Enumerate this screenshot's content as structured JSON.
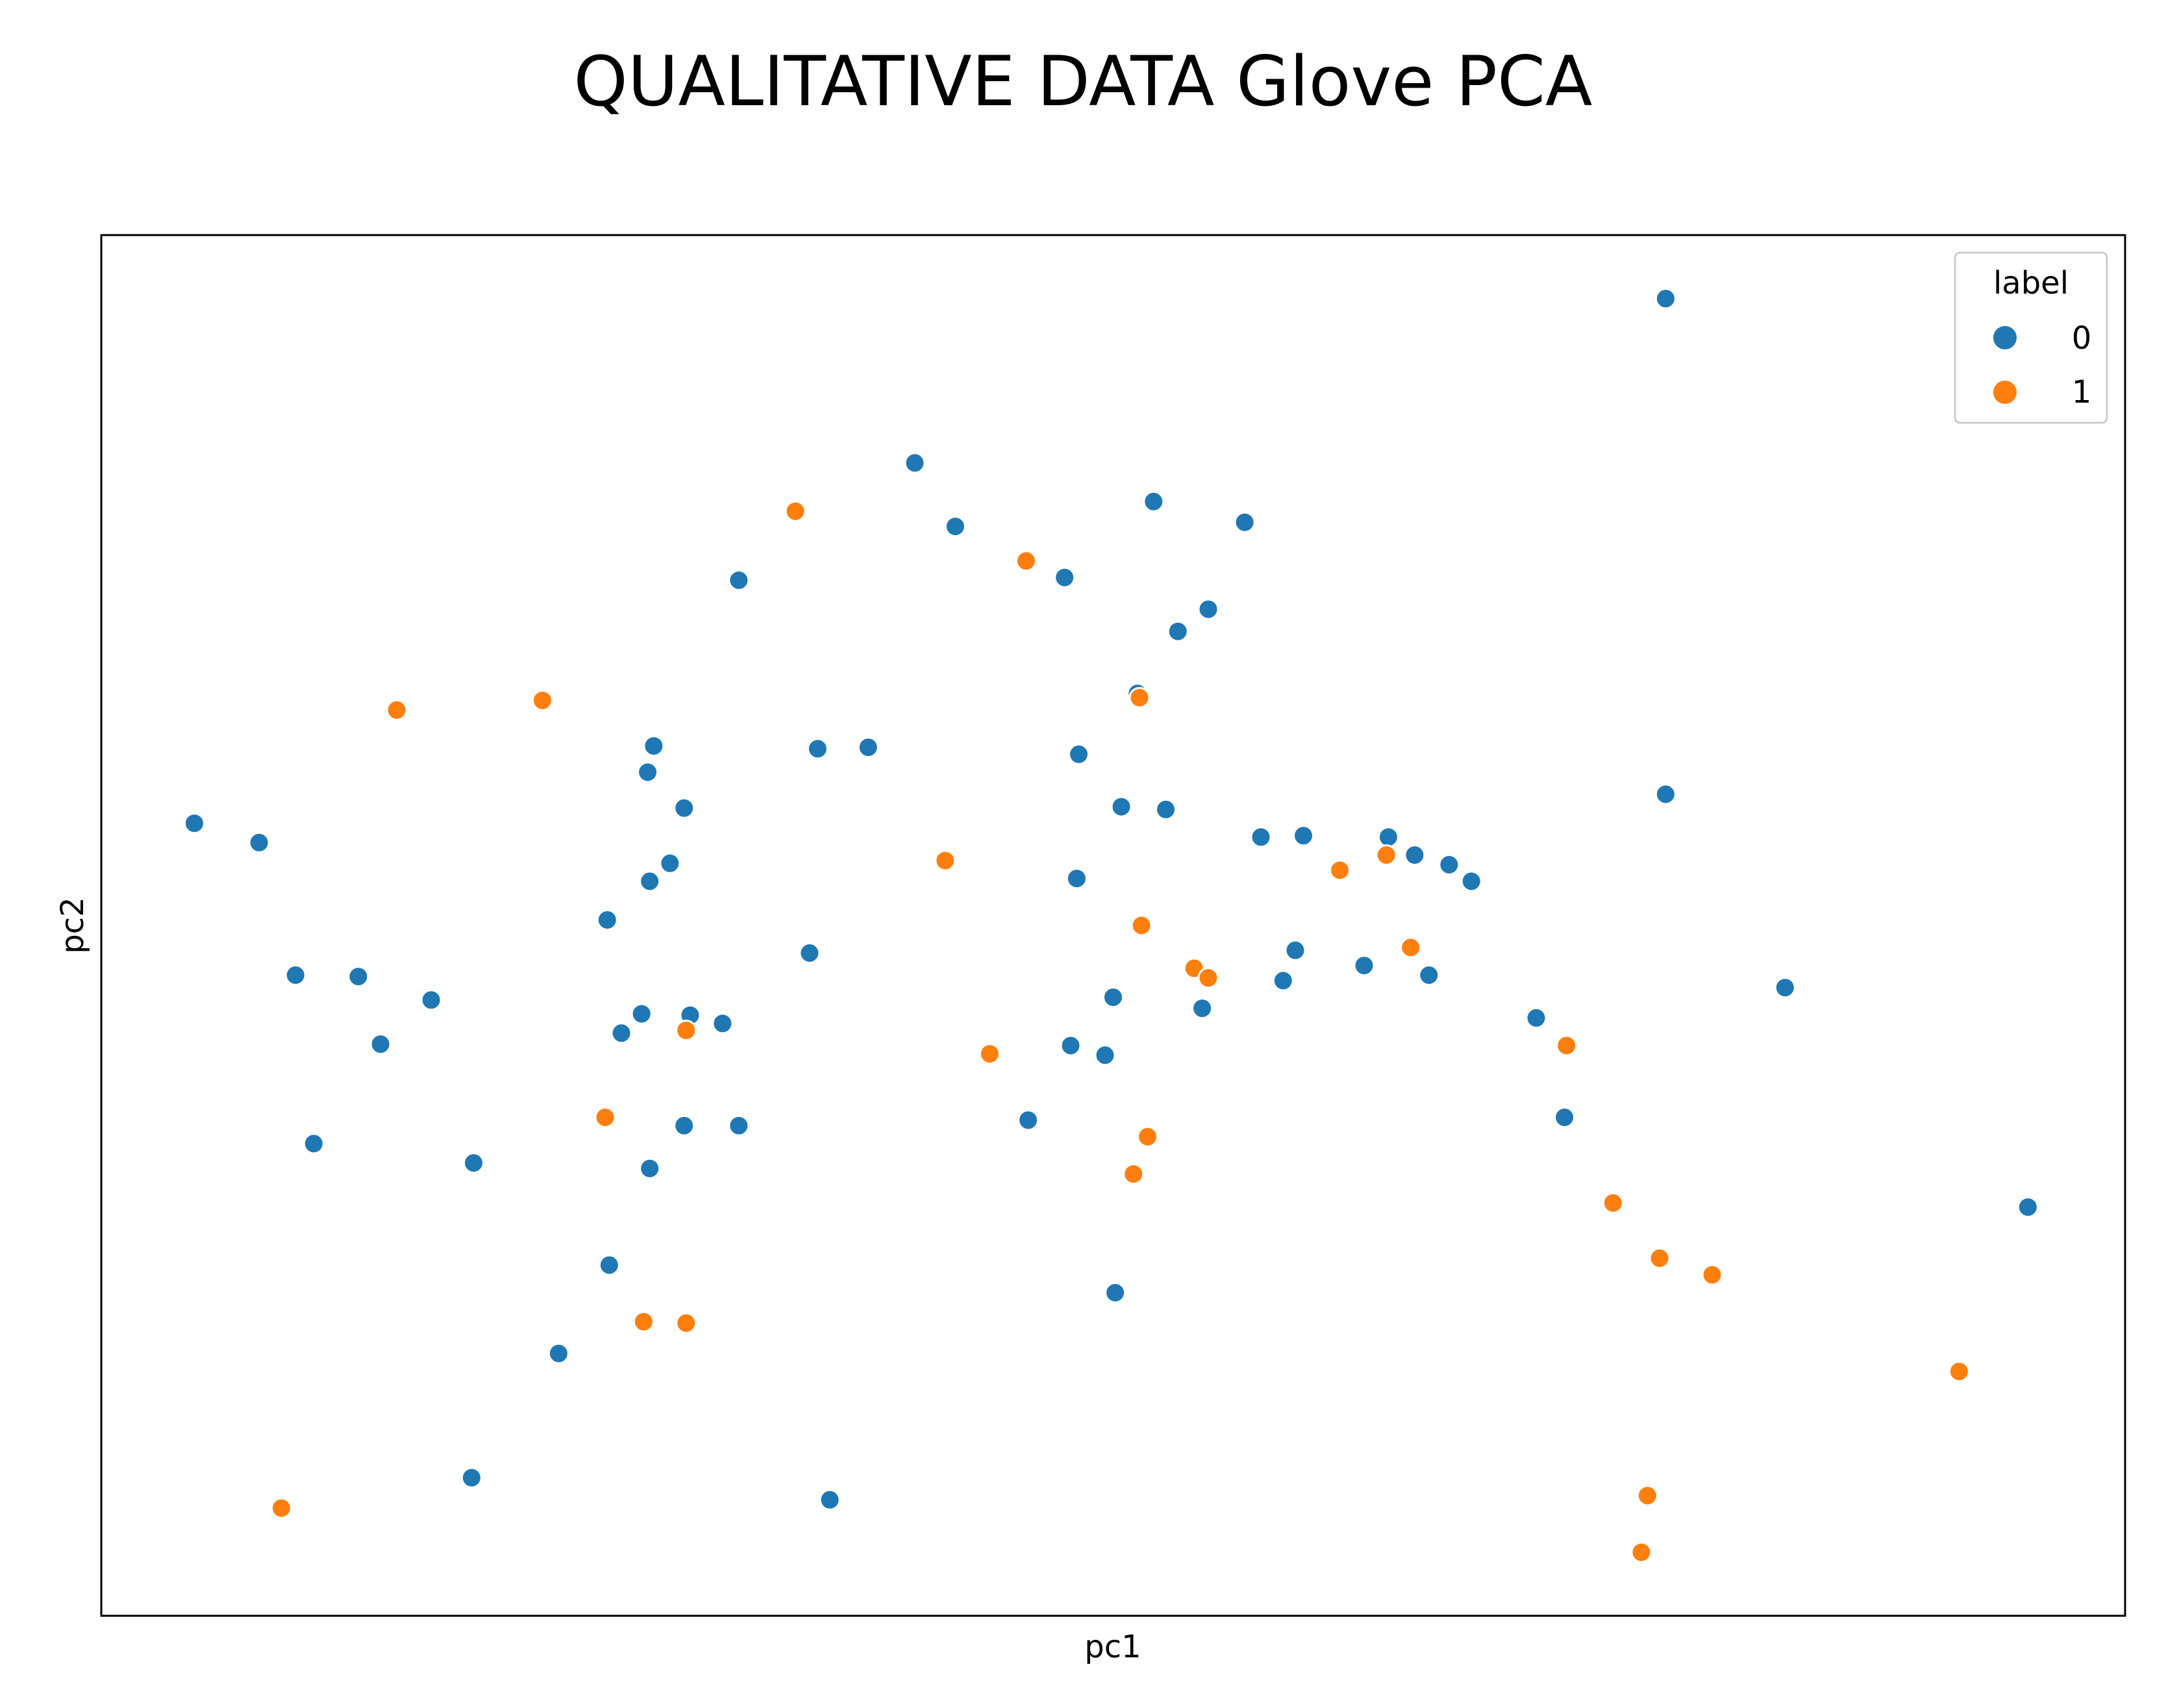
{
  "chart_data": {
    "type": "scatter",
    "title": "QUALITATIVE DATA Glove PCA",
    "xlabel": "pc1",
    "ylabel": "pc2",
    "xlim": [
      0,
      100
    ],
    "ylim": [
      0,
      100
    ],
    "ticks_visible": false,
    "grid": false,
    "legend": {
      "title": "label",
      "placement": "top-right",
      "entries": [
        {
          "label": "0",
          "color": "#1f77b4"
        },
        {
          "label": "1",
          "color": "#ff7f0e"
        }
      ]
    },
    "series": [
      {
        "name": "0",
        "color": "#1f77b4",
        "points": [
          [
            4.6,
            57.4
          ],
          [
            7.8,
            56.0
          ],
          [
            9.6,
            46.4
          ],
          [
            12.7,
            46.3
          ],
          [
            16.3,
            44.6
          ],
          [
            13.8,
            41.4
          ],
          [
            10.5,
            34.2
          ],
          [
            18.4,
            32.8
          ],
          [
            25.0,
            50.4
          ],
          [
            26.7,
            43.6
          ],
          [
            25.7,
            42.2
          ],
          [
            27.1,
            32.4
          ],
          [
            25.1,
            25.4
          ],
          [
            22.6,
            19.0
          ],
          [
            18.3,
            10.0
          ],
          [
            27.3,
            63.0
          ],
          [
            27.0,
            61.1
          ],
          [
            28.8,
            58.5
          ],
          [
            27.1,
            53.2
          ],
          [
            28.1,
            54.5
          ],
          [
            29.1,
            43.5
          ],
          [
            30.7,
            42.9
          ],
          [
            31.5,
            35.5
          ],
          [
            31.5,
            75.0
          ],
          [
            35.4,
            62.8
          ],
          [
            35.0,
            48.0
          ],
          [
            37.9,
            62.9
          ],
          [
            36.0,
            8.4
          ],
          [
            40.2,
            83.5
          ],
          [
            42.2,
            78.9
          ],
          [
            47.6,
            75.2
          ],
          [
            48.3,
            62.4
          ],
          [
            48.2,
            53.4
          ],
          [
            47.9,
            41.3
          ],
          [
            45.8,
            35.9
          ],
          [
            49.6,
            40.6
          ],
          [
            50.0,
            44.8
          ],
          [
            50.4,
            58.6
          ],
          [
            54.4,
            44.0
          ],
          [
            50.1,
            23.4
          ],
          [
            52.0,
            80.7
          ],
          [
            53.2,
            71.3
          ],
          [
            54.7,
            72.9
          ],
          [
            52.6,
            58.4
          ],
          [
            56.5,
            79.2
          ],
          [
            51.2,
            66.8
          ],
          [
            57.3,
            56.4
          ],
          [
            59.4,
            56.5
          ],
          [
            59.0,
            48.2
          ],
          [
            58.4,
            46.0
          ],
          [
            62.4,
            47.1
          ],
          [
            64.9,
            55.1
          ],
          [
            66.6,
            54.4
          ],
          [
            67.7,
            53.2
          ],
          [
            63.6,
            56.4
          ],
          [
            70.9,
            43.3
          ],
          [
            72.3,
            36.1
          ],
          [
            77.3,
            95.4
          ],
          [
            77.3,
            59.5
          ],
          [
            83.2,
            45.5
          ],
          [
            95.2,
            29.6
          ],
          [
            28.8,
            35.5
          ],
          [
            65.6,
            46.4
          ]
        ]
      },
      {
        "name": "1",
        "color": "#ff7f0e",
        "points": [
          [
            8.9,
            7.8
          ],
          [
            14.6,
            65.6
          ],
          [
            21.8,
            66.3
          ],
          [
            24.9,
            36.1
          ],
          [
            26.8,
            21.3
          ],
          [
            28.9,
            21.2
          ],
          [
            28.9,
            42.4
          ],
          [
            34.3,
            80.0
          ],
          [
            41.7,
            54.7
          ],
          [
            43.9,
            40.7
          ],
          [
            45.7,
            76.4
          ],
          [
            51.3,
            66.5
          ],
          [
            51.4,
            50.0
          ],
          [
            51.7,
            34.7
          ],
          [
            51.0,
            32.0
          ],
          [
            54.0,
            46.9
          ],
          [
            54.7,
            46.2
          ],
          [
            61.2,
            54.0
          ],
          [
            63.5,
            55.1
          ],
          [
            64.7,
            48.4
          ],
          [
            72.4,
            41.3
          ],
          [
            74.7,
            29.9
          ],
          [
            77.0,
            25.9
          ],
          [
            79.6,
            24.7
          ],
          [
            76.4,
            8.7
          ],
          [
            76.1,
            4.6
          ],
          [
            91.8,
            17.7
          ]
        ]
      }
    ]
  }
}
